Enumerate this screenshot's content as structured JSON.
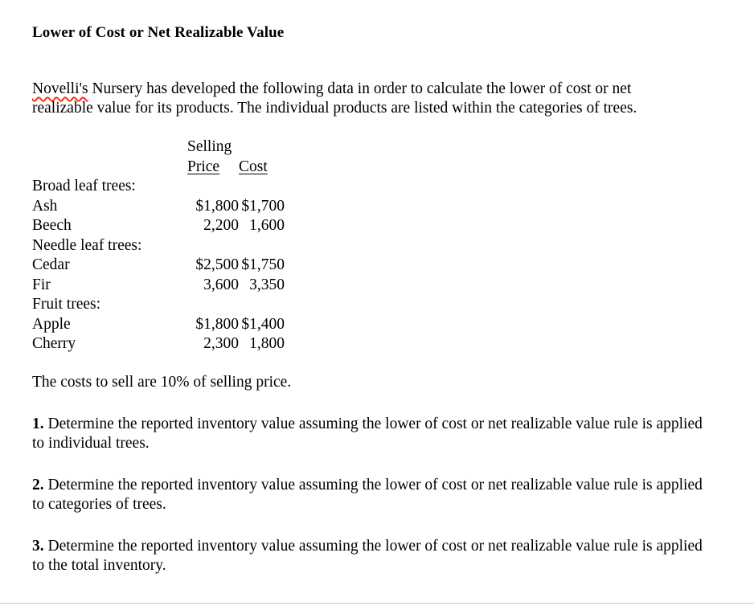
{
  "page": {
    "title": "Lower of Cost or Net Realizable Value",
    "intro_misspelled": "Novelli's",
    "intro_rest": " Nursery has developed the following data in order to calculate the lower of cost or net realizable value for its products. The individual products are listed within the categories of trees.",
    "costs_note": "The costs to sell are 10% of selling price."
  },
  "table": {
    "header": {
      "selling_line1": "Selling",
      "selling_line2": "Price",
      "cost": "Cost"
    },
    "rows": [
      {
        "name": "Broad leaf trees:",
        "selling": "",
        "cost": ""
      },
      {
        "name": "Ash",
        "selling": "$1,800",
        "cost": "$1,700"
      },
      {
        "name": "Beech",
        "selling": "2,200",
        "cost": "1,600"
      },
      {
        "name": "Needle leaf trees:",
        "selling": "",
        "cost": ""
      },
      {
        "name": "Cedar",
        "selling": "$2,500",
        "cost": "$1,750"
      },
      {
        "name": "Fir",
        "selling": "3,600",
        "cost": "3,350"
      },
      {
        "name": "Fruit trees:",
        "selling": "",
        "cost": ""
      },
      {
        "name": "Apple",
        "selling": "$1,800",
        "cost": "$1,400"
      },
      {
        "name": "Cherry",
        "selling": "2,300",
        "cost": "1,800"
      }
    ]
  },
  "questions": [
    {
      "number": "1.",
      "text": " Determine the reported inventory value assuming the lower of cost or net realizable value rule is applied to individual trees."
    },
    {
      "number": "2.",
      "text": " Determine the reported inventory value assuming the lower of cost or net realizable value rule is applied to categories of trees."
    },
    {
      "number": "3.",
      "text": "  Determine the reported inventory value assuming the lower of cost or net realizable value rule is applied to the total inventory."
    }
  ],
  "colors": {
    "spellcheck_underline": "#ff2d1f"
  }
}
